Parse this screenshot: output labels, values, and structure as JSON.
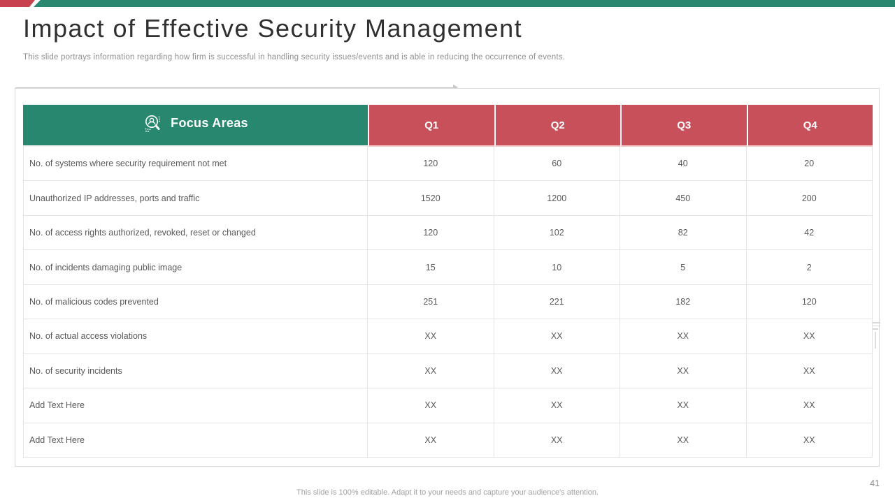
{
  "slide": {
    "title": "Impact of Effective Security Management",
    "subtitle": "This slide portrays information regarding how firm is successful in handling security issues/events and is able in reducing the occurrence of events.",
    "footer": "This slide is 100% editable. Adapt it to your needs and capture your audience's attention.",
    "page_number": "41"
  },
  "colors": {
    "accent_green": "#28876F",
    "accent_red": "#C7505B",
    "header_divider_pink": "#F2C4C8",
    "body_text": "#595959",
    "muted_text": "#8F8F8F",
    "border_gray": "#E4E4E4"
  },
  "table": {
    "focus_header": {
      "label": "Focus Areas",
      "icon": "user-search-icon"
    },
    "quarter_headers": [
      "Q1",
      "Q2",
      "Q3",
      "Q4"
    ],
    "rows": [
      {
        "label": "No. of systems where security requirement not met",
        "values": [
          "120",
          "60",
          "40",
          "20"
        ]
      },
      {
        "label": "Unauthorized IP addresses, ports and traffic",
        "values": [
          "1520",
          "1200",
          "450",
          "200"
        ]
      },
      {
        "label": "No. of access rights authorized, revoked, reset or changed",
        "values": [
          "120",
          "102",
          "82",
          "42"
        ]
      },
      {
        "label": "No. of incidents damaging public image",
        "values": [
          "15",
          "10",
          "5",
          "2"
        ]
      },
      {
        "label": "No. of malicious codes prevented",
        "values": [
          "251",
          "221",
          "182",
          "120"
        ]
      },
      {
        "label": "No. of actual access  violations",
        "values": [
          "XX",
          "XX",
          "XX",
          "XX"
        ]
      },
      {
        "label": "No. of security incidents",
        "values": [
          "XX",
          "XX",
          "XX",
          "XX"
        ]
      },
      {
        "label": "Add Text Here",
        "values": [
          "XX",
          "XX",
          "XX",
          "XX"
        ]
      },
      {
        "label": "Add Text Here",
        "values": [
          "XX",
          "XX",
          "XX",
          "XX"
        ]
      }
    ]
  }
}
